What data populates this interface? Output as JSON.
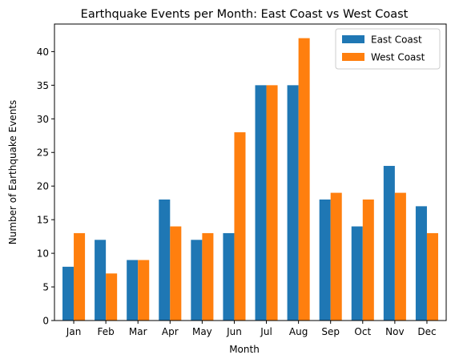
{
  "chart_data": {
    "type": "bar",
    "title": "Earthquake Events per Month: East Coast vs West Coast",
    "xlabel": "Month",
    "ylabel": "Number of Earthquake Events",
    "categories": [
      "Jan",
      "Feb",
      "Mar",
      "Apr",
      "May",
      "Jun",
      "Jul",
      "Aug",
      "Sep",
      "Oct",
      "Nov",
      "Dec"
    ],
    "series": [
      {
        "name": "East Coast",
        "color": "#1f77b4",
        "values": [
          8,
          12,
          9,
          18,
          12,
          13,
          35,
          35,
          18,
          14,
          23,
          17
        ]
      },
      {
        "name": "West Coast",
        "color": "#ff7f0e",
        "values": [
          13,
          7,
          9,
          14,
          13,
          28,
          35,
          42,
          19,
          18,
          19,
          13
        ]
      }
    ],
    "ylim": [
      0,
      44.1
    ],
    "yticks": [
      0,
      5,
      10,
      15,
      20,
      25,
      30,
      35,
      40
    ],
    "grid": false,
    "legend_position": "top-right"
  }
}
